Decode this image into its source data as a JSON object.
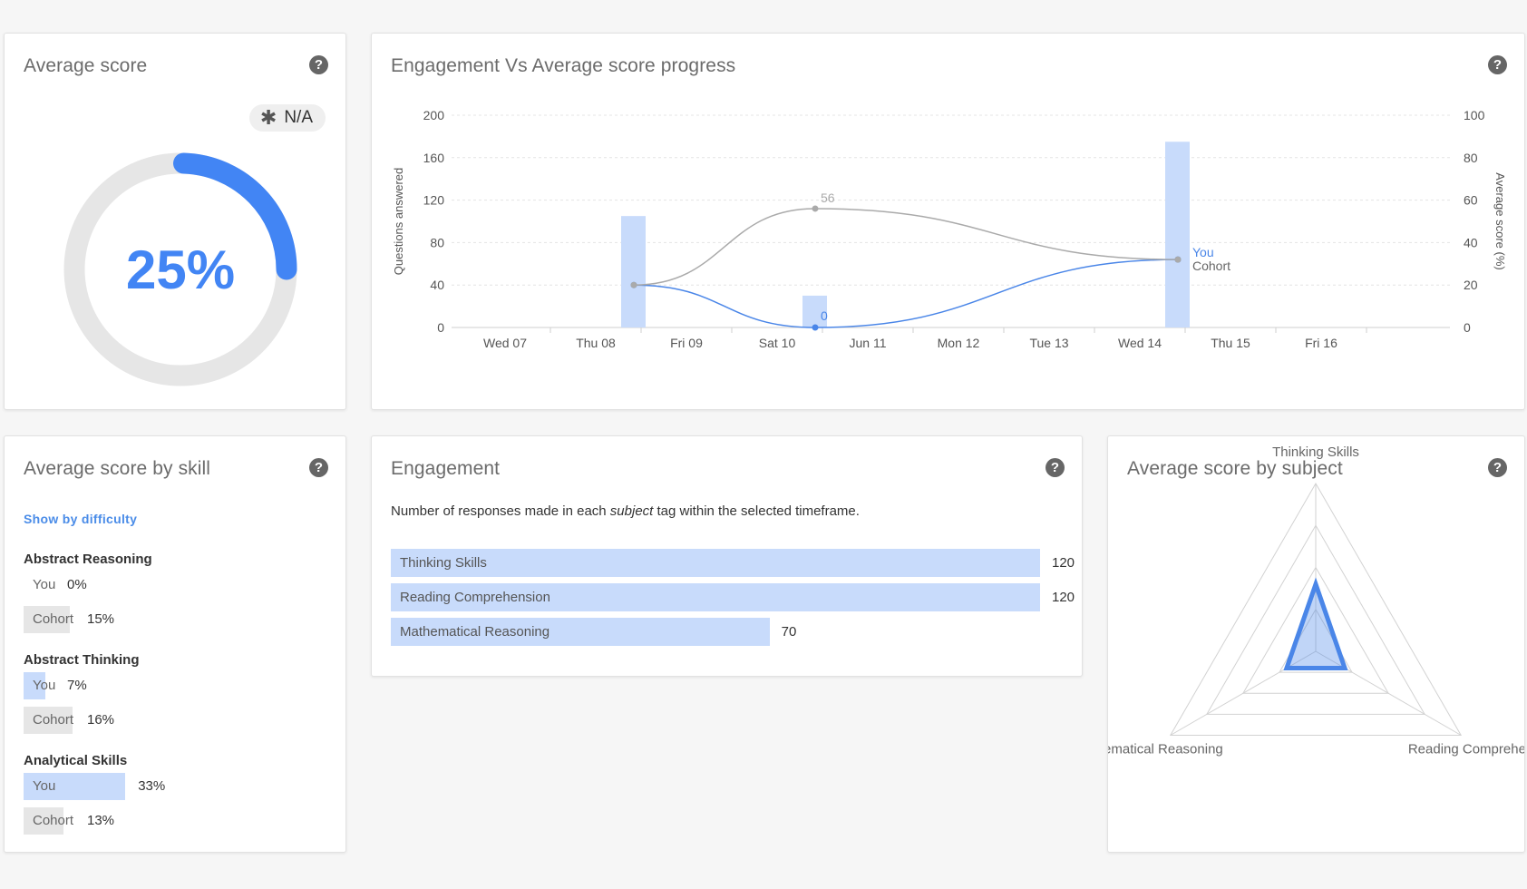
{
  "average_score": {
    "title": "Average score",
    "help_icon": "?",
    "badge_icon": "✱",
    "badge_label": "N/A",
    "percent_label": "25%",
    "percent": 25
  },
  "progress": {
    "title": "Engagement Vs Average score progress",
    "help_icon": "?",
    "chart_data": {
      "type": "bar+line",
      "xlabel": "",
      "ylabel_left": "Questions answered",
      "ylabel_right": "Average score (%)",
      "x_ticks": [
        "Wed 07",
        "Thu 08",
        "Fri 09",
        "Sat 10",
        "Jun 11",
        "Mon 12",
        "Tue 13",
        "Wed 14",
        "Thu 15",
        "Fri 16"
      ],
      "y_left_ticks": [
        "200",
        "160",
        "120",
        "80",
        "40",
        "0"
      ],
      "y_right_ticks": [
        "100",
        "80",
        "60",
        "40",
        "20",
        "0"
      ],
      "ylim_left": [
        0,
        200
      ],
      "ylim_right": [
        0,
        100
      ],
      "bars": {
        "name": "Questions answered",
        "points": [
          {
            "x": 1.42,
            "value": 105
          },
          {
            "x": 3.42,
            "value": 30
          },
          {
            "x": 7.42,
            "value": 175
          }
        ]
      },
      "series": [
        {
          "name": "You",
          "color": "#4a86e8",
          "points": [
            {
              "x": 1.42,
              "value": 20
            },
            {
              "x": 3.42,
              "value": 0
            },
            {
              "x": 7.42,
              "value": 32
            }
          ]
        },
        {
          "name": "Cohort",
          "color": "#aaaaaa",
          "points": [
            {
              "x": 1.42,
              "value": 20
            },
            {
              "x": 3.42,
              "value": 56
            },
            {
              "x": 7.42,
              "value": 32
            }
          ]
        }
      ],
      "point_labels": [
        {
          "text": "56",
          "series": "Cohort",
          "index": 1
        },
        {
          "text": "0",
          "series": "You",
          "index": 1
        }
      ],
      "grid": true
    }
  },
  "skill": {
    "title": "Average score by skill",
    "help_icon": "?",
    "show_link": "Show by difficulty",
    "you_label": "You",
    "cohort_label": "Cohort",
    "items": [
      {
        "name": "Abstract Reasoning",
        "you": "0%",
        "you_frac": 0.0,
        "cohort": "15%",
        "cohort_frac": 0.15
      },
      {
        "name": "Abstract Thinking",
        "you": "7%",
        "you_frac": 0.07,
        "cohort": "16%",
        "cohort_frac": 0.16
      },
      {
        "name": "Analytical Skills",
        "you": "33%",
        "you_frac": 0.33,
        "cohort": "13%",
        "cohort_frac": 0.13
      }
    ]
  },
  "engagement": {
    "title": "Engagement",
    "help_icon": "?",
    "desc_before": "Number of responses made in each ",
    "desc_em": "subject",
    "desc_after": " tag within the selected timeframe.",
    "max": 120,
    "bars": [
      {
        "label": "Thinking Skills",
        "value": "120",
        "count": 120
      },
      {
        "label": "Reading Comprehension",
        "value": "120",
        "count": 120
      },
      {
        "label": "Mathematical Reasoning",
        "value": "70",
        "count": 70
      }
    ]
  },
  "subject": {
    "title": "Average score by subject",
    "help_icon": "?",
    "chart_data": {
      "type": "radar",
      "axes": [
        "Thinking Skills",
        "Reading Comprehensic",
        "lathematical Reasoning"
      ],
      "levels": 4,
      "series": [
        {
          "name": "You",
          "color": "#4a86e8",
          "values": [
            0.4,
            0.2,
            0.2
          ]
        }
      ]
    }
  }
}
